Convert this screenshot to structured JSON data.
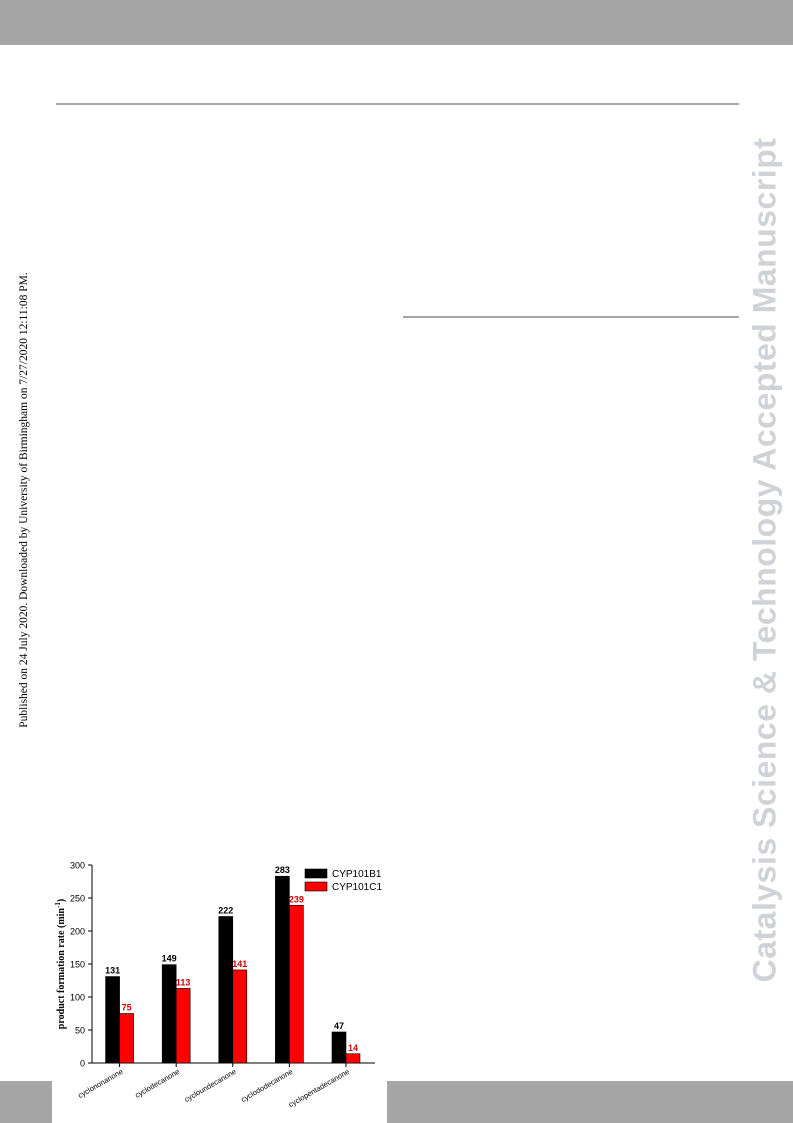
{
  "side_note": "Published on 24 July 2020. Downloaded by University of Birmingham on 7/27/2020 12:11:08 PM.",
  "watermark": "Catalysis Science & Technology Accepted Manuscript",
  "colors": {
    "band": "#a6a6a6",
    "watermark": "#cfd3d8",
    "series_black": "#000000",
    "series_red": "#ff0000",
    "label_red": "#d40000"
  },
  "chart_data": {
    "type": "bar",
    "categories": [
      "cyclononanone",
      "cyclodecanone",
      "cycloundecanone",
      "cyclododecanone",
      "cyclopentadecanone"
    ],
    "series": [
      {
        "name": "CYP101B1",
        "values": [
          131,
          149,
          222,
          283,
          47
        ]
      },
      {
        "name": "CYP101C1",
        "values": [
          75,
          113,
          141,
          239,
          14
        ]
      }
    ],
    "ylabel": "product formation rate (min",
    "ylabel_sup": "-1",
    "ylabel_suffix": ")",
    "ylim": [
      0,
      300
    ],
    "yticks": [
      0,
      50,
      100,
      150,
      200,
      250,
      300
    ],
    "legend_position": "top-right",
    "grid": false
  }
}
